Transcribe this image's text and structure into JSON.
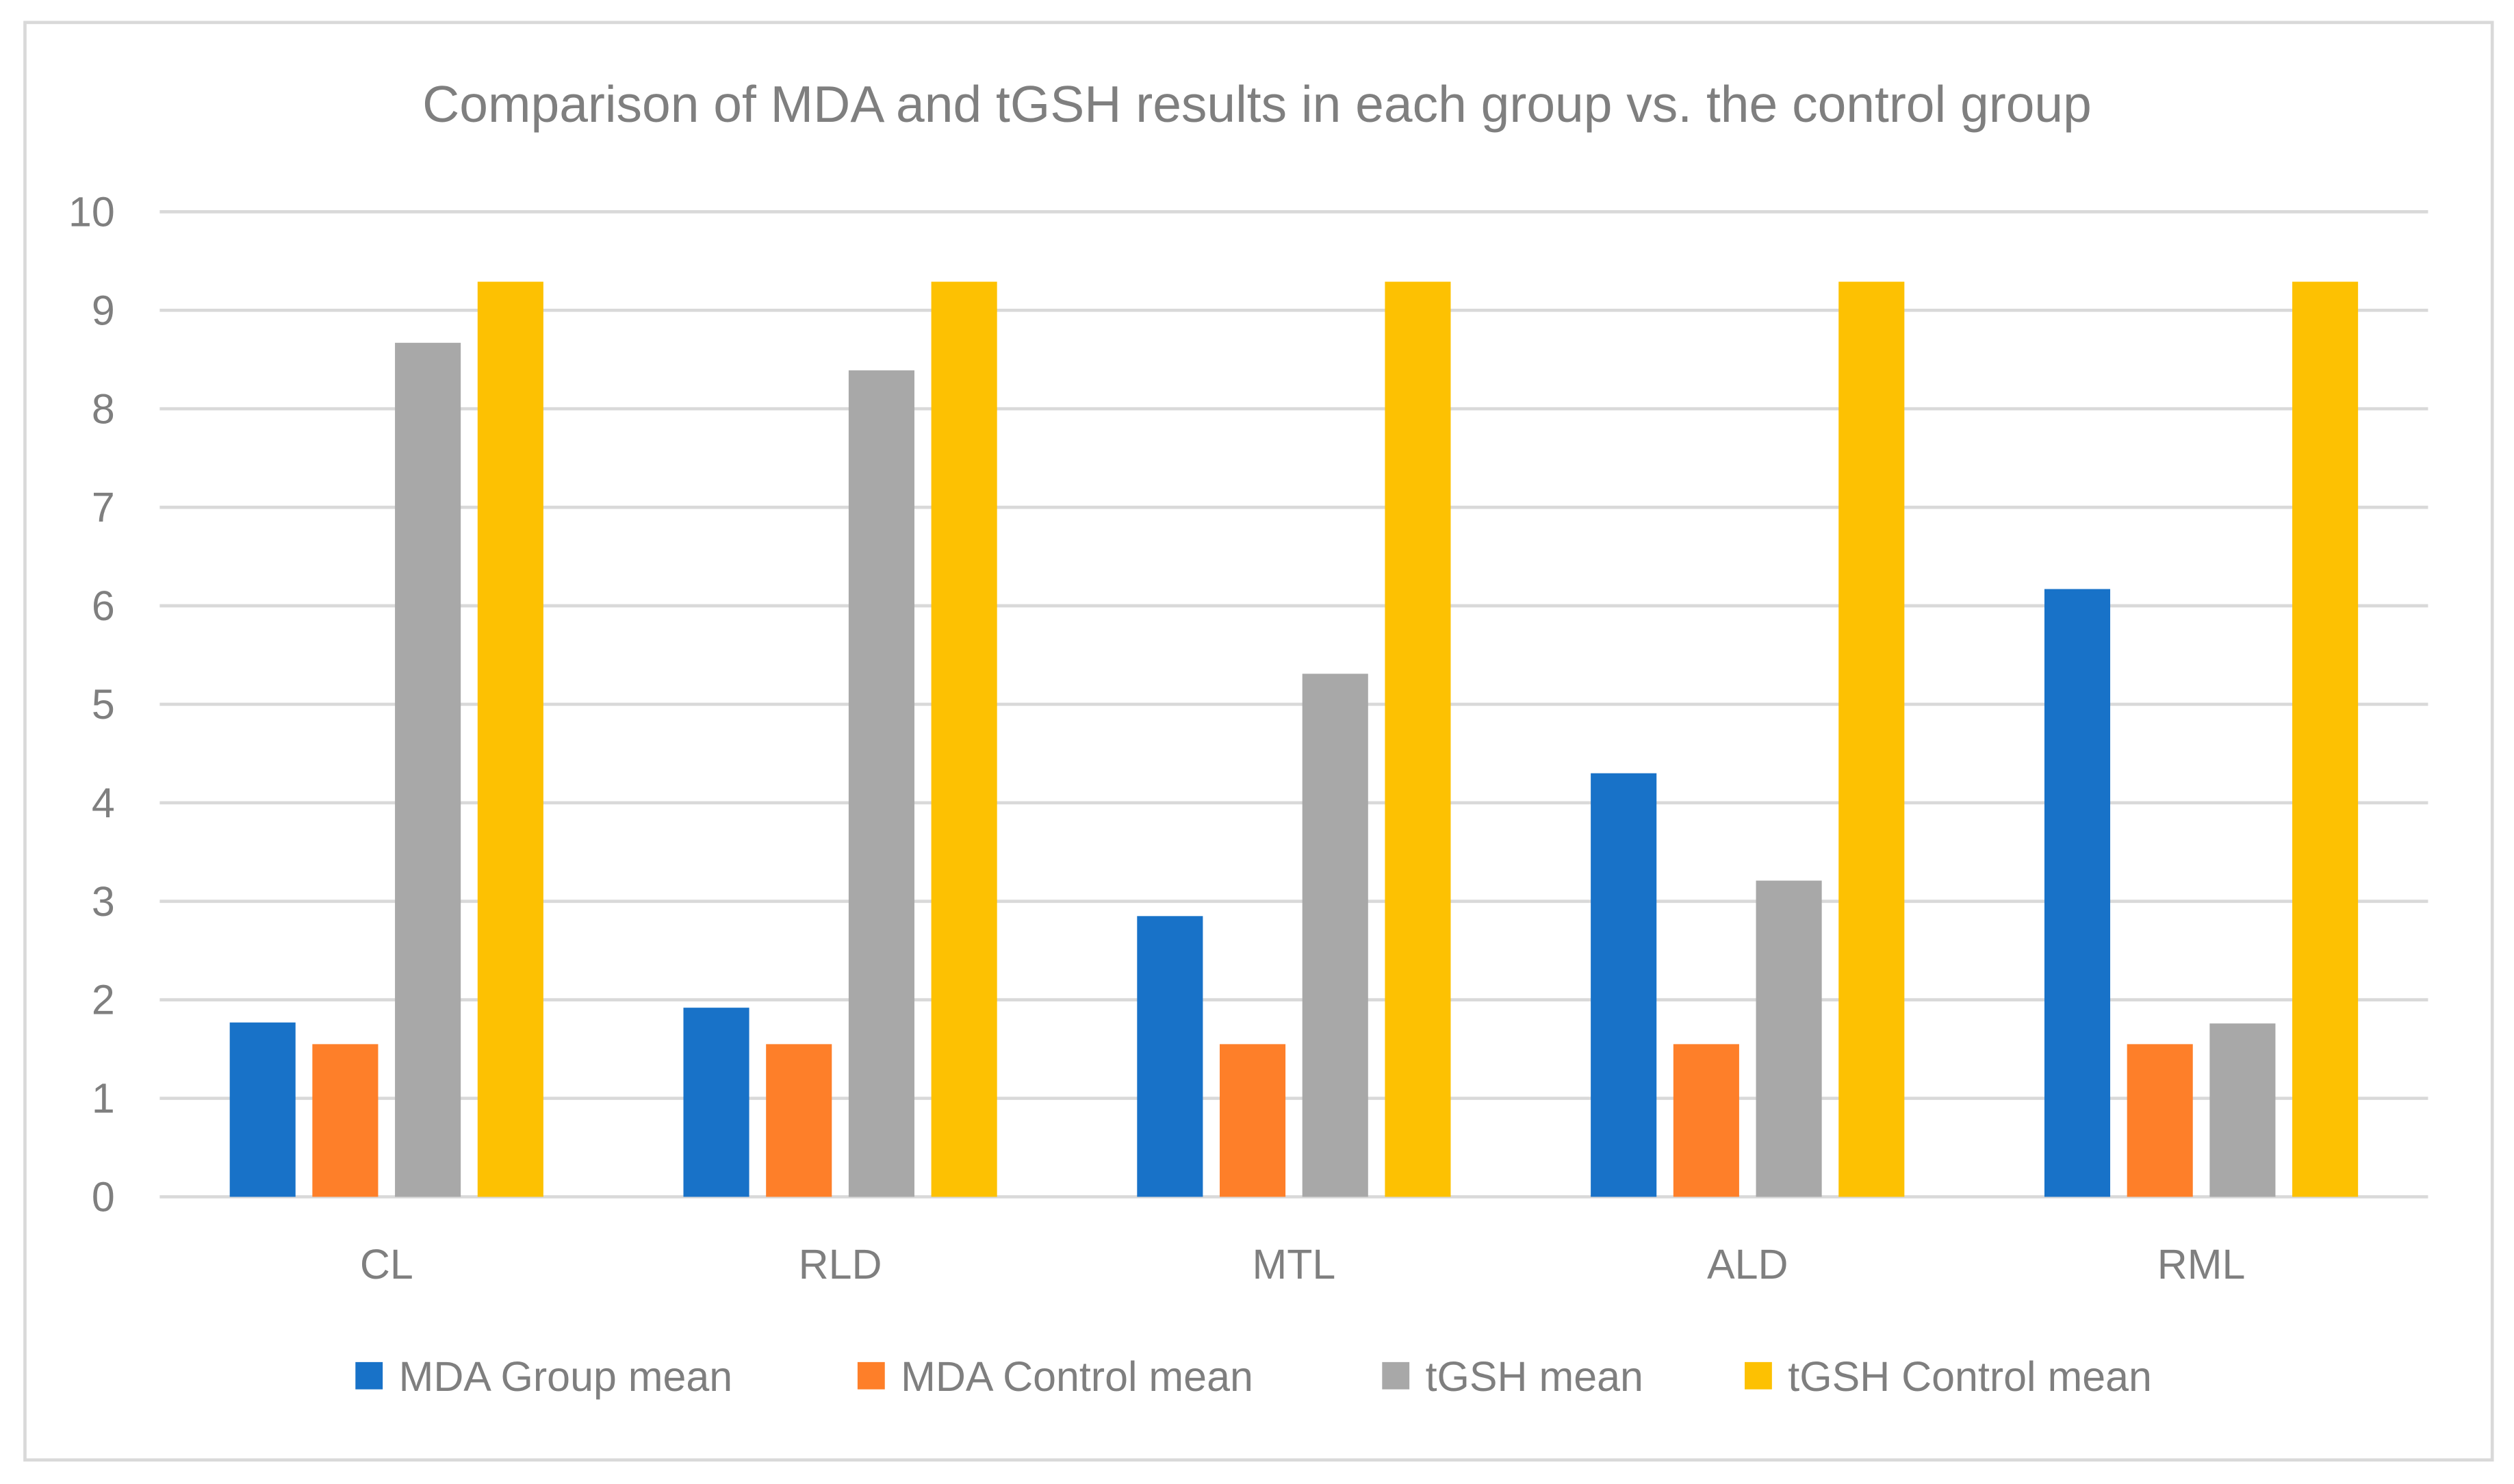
{
  "chart_data": {
    "type": "bar",
    "title": "Comparison of MDA and tGSH results in each group vs. the control group",
    "xlabel": "",
    "ylabel": "",
    "ylim": [
      0,
      10
    ],
    "yticks": [
      "0",
      "1",
      "2",
      "3",
      "4",
      "5",
      "6",
      "7",
      "8",
      "9",
      "10"
    ],
    "grid": true,
    "legend_position": "bottom",
    "categories": [
      "CL",
      "RLD",
      "MTL",
      "ALD",
      "RML"
    ],
    "series": [
      {
        "name": "MDA Group mean",
        "color": "#1872c8",
        "values": [
          1.77,
          1.92,
          2.85,
          4.3,
          6.17
        ]
      },
      {
        "name": "MDA Control mean",
        "color": "#fe7f29",
        "values": [
          1.55,
          1.55,
          1.55,
          1.55,
          1.55
        ]
      },
      {
        "name": "tGSH mean",
        "color": "#a8a8a8",
        "values": [
          8.67,
          8.39,
          5.31,
          3.21,
          1.76
        ]
      },
      {
        "name": "tGSH Control mean",
        "color": "#fdc102",
        "values": [
          9.29,
          9.29,
          9.29,
          9.29,
          9.29
        ]
      }
    ]
  }
}
